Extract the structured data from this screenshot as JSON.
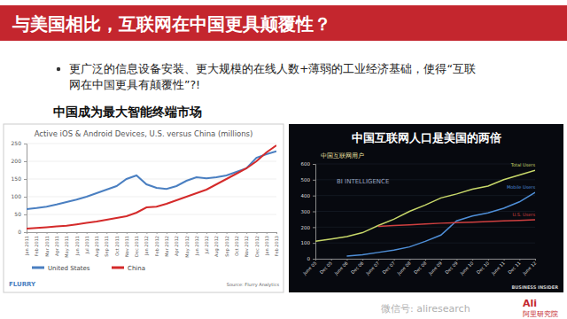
{
  "page": {
    "title": "与美国相比，互联网在中国更具颠覆性？",
    "bullet": [
      "更广泛的信息设备安装、更大规模的在线人数+薄弱的工业经济基础，使得“互联",
      "网在中国更具有颠覆性”?!"
    ],
    "footer_wechat": "微信号: aliresearch",
    "footer_logo_mark": "Ali",
    "footer_logo": "阿里研究院"
  },
  "chart_data": [
    {
      "type": "line",
      "subtitle": "中国成为最大智能终端市场",
      "title": "Active iOS & Android Devices, U.S. versus China (millions)",
      "logo": "FLURRY",
      "source": "Source: Flurry Analytics",
      "categories": [
        "Jan 2011",
        "Feb 2011",
        "Mar 2011",
        "Apr 2011",
        "May 2011",
        "Jun 2011",
        "Jul 2011",
        "Aug 2011",
        "Sep 2011",
        "Oct 2011",
        "Nov 2011",
        "Dec 2011",
        "Jan 2012",
        "Feb 2012",
        "Mar 2012",
        "Apr 2012",
        "May 2012",
        "Jun 2012",
        "Jul 2012",
        "Aug 2012",
        "Sep 2012",
        "Oct 2012",
        "Nov 2012",
        "Dec 2012",
        "Jan 2013",
        "Feb 2013"
      ],
      "series": [
        {
          "name": "United States",
          "color": "#4a7fc1",
          "values": [
            65,
            68,
            72,
            78,
            85,
            92,
            100,
            110,
            120,
            130,
            150,
            160,
            135,
            125,
            122,
            130,
            145,
            155,
            152,
            155,
            160,
            170,
            180,
            210,
            220,
            228
          ]
        },
        {
          "name": "China",
          "color": "#d42a2a",
          "values": [
            10,
            12,
            14,
            16,
            18,
            22,
            26,
            30,
            35,
            40,
            45,
            55,
            70,
            72,
            80,
            90,
            100,
            110,
            120,
            135,
            150,
            165,
            180,
            200,
            225,
            245
          ]
        }
      ],
      "ylim": [
        0,
        250
      ],
      "yticks": [
        0,
        50,
        100,
        150,
        200,
        250
      ],
      "grid": true,
      "legend": "bottom-left"
    },
    {
      "type": "line",
      "title": "中国互联网人口是美国的两倍",
      "subtitle": "中国互联网用户",
      "annotations": [
        "BI INTELLIGENCE",
        "BUSINESS INSIDER"
      ],
      "categories": [
        "June 05",
        "Dec 05",
        "June 06",
        "Dec 06",
        "June 07",
        "Dec 07",
        "June 08",
        "Dec 08",
        "June 09",
        "Dec 09",
        "June 10",
        "Dec 10",
        "June 11",
        "Dec 11",
        "June 12"
      ],
      "series": [
        {
          "name": "Total Users",
          "color": "#c8d86a",
          "values": [
            110,
            125,
            140,
            165,
            210,
            250,
            300,
            340,
            385,
            410,
            440,
            460,
            500,
            530,
            560
          ]
        },
        {
          "name": "Mobile Users",
          "color": "#4f8fd8",
          "values": [
            null,
            null,
            17,
            25,
            40,
            55,
            75,
            110,
            150,
            240,
            270,
            290,
            320,
            360,
            420
          ]
        },
        {
          "name": "U.S. Users",
          "color": "#d04040",
          "values": [
            null,
            null,
            null,
            null,
            205,
            210,
            215,
            220,
            225,
            228,
            232,
            236,
            240,
            243,
            247
          ]
        }
      ],
      "ylim": [
        0,
        600
      ],
      "yticks": [
        0,
        100,
        200,
        300,
        400,
        500,
        600
      ],
      "grid": true
    }
  ]
}
